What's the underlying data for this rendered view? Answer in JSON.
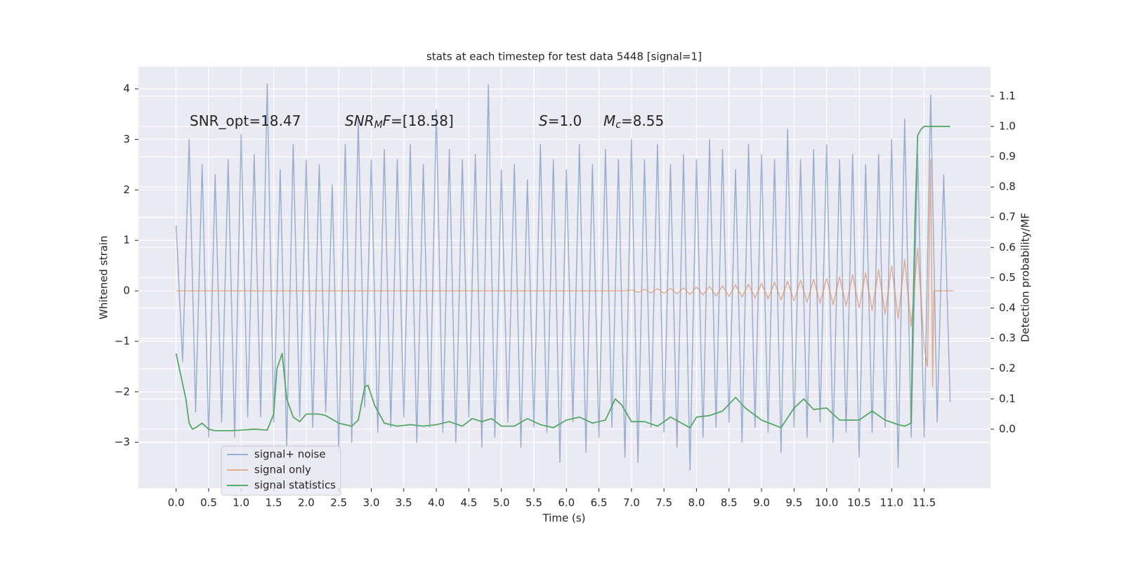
{
  "chart_data": {
    "type": "line",
    "title": "stats at each timestep for test data 5448 [signal=1]",
    "xlabel": "Time (s)",
    "ylabel": "Whitened strain",
    "y2label": "Detection probability/MF",
    "annotations": [
      {
        "parts": [
          {
            "text": "SNR_opt=18.47"
          }
        ]
      },
      {
        "parts": [
          {
            "text": "SNR",
            "style": "italic"
          },
          {
            "text": "M",
            "style": "italic sub"
          },
          {
            "text": "F",
            "style": "italic"
          },
          {
            "text": "=[18.58]"
          }
        ]
      },
      {
        "parts": [
          {
            "text": "S",
            "style": "italic"
          },
          {
            "text": "=1.0"
          }
        ]
      },
      {
        "parts": [
          {
            "text": "M",
            "style": "italic"
          },
          {
            "text": "c",
            "style": "italic sub"
          },
          {
            "text": "=8.55"
          }
        ]
      }
    ],
    "xlim": [
      -0.58,
      12.52
    ],
    "xticks": [
      {
        "value": 0,
        "label": "0.0"
      },
      0.5,
      {
        "value": 1,
        "label": "1.0"
      },
      1.5,
      {
        "value": 2,
        "label": "2.0"
      },
      2.5,
      {
        "value": 3,
        "label": "3.0"
      },
      3.5,
      {
        "value": 4,
        "label": "4.0"
      },
      4.5,
      {
        "value": 5,
        "label": "5.0"
      },
      5.5,
      {
        "value": 6,
        "label": "6.0"
      },
      6.5,
      {
        "value": 7,
        "label": "7.0"
      },
      7.5,
      {
        "value": 8,
        "label": "8.0"
      },
      8.5,
      {
        "value": 9,
        "label": "9.0"
      },
      9.5,
      {
        "value": 10,
        "label": "10.0"
      },
      10.5,
      {
        "value": 11,
        "label": "11.0"
      },
      11.5
    ],
    "ylim": [
      -3.91,
      4.44
    ],
    "yticks": [
      {
        "value": -3,
        "label": "−3"
      },
      {
        "value": -2,
        "label": "−2"
      },
      {
        "value": -1,
        "label": "−1"
      },
      0,
      1,
      2,
      3,
      4
    ],
    "y2lim": [
      -0.195,
      1.197
    ],
    "y2ticks": [
      {
        "value": 0,
        "label": "0.0"
      },
      0.1,
      0.2,
      0.3,
      0.4,
      0.5,
      0.6,
      0.7,
      0.8,
      0.9,
      {
        "value": 1,
        "label": "1.0"
      },
      1.1
    ],
    "grid": true,
    "legend": "lower left",
    "series": [
      {
        "name": "signal+ noise",
        "color": "#4c72b0",
        "opacity": 0.5,
        "x": [
          0.0,
          0.1,
          0.2,
          0.3,
          0.4,
          0.5,
          0.6,
          0.7,
          0.8,
          0.9,
          1.0,
          1.1,
          1.2,
          1.3,
          1.4,
          1.5,
          1.6,
          1.7,
          1.8,
          1.9,
          2.0,
          2.1,
          2.2,
          2.3,
          2.4,
          2.5,
          2.6,
          2.7,
          2.8,
          2.9,
          3.0,
          3.1,
          3.2,
          3.3,
          3.4,
          3.5,
          3.6,
          3.7,
          3.8,
          3.9,
          4.0,
          4.1,
          4.2,
          4.3,
          4.4,
          4.5,
          4.6,
          4.7,
          4.8,
          4.9,
          5.0,
          5.1,
          5.2,
          5.3,
          5.4,
          5.5,
          5.6,
          5.7,
          5.8,
          5.9,
          6.0,
          6.1,
          6.2,
          6.3,
          6.4,
          6.5,
          6.6,
          6.7,
          6.8,
          6.9,
          7.0,
          7.1,
          7.2,
          7.3,
          7.4,
          7.5,
          7.6,
          7.7,
          7.8,
          7.9,
          8.0,
          8.1,
          8.2,
          8.3,
          8.4,
          8.5,
          8.6,
          8.7,
          8.8,
          8.9,
          9.0,
          9.1,
          9.2,
          9.3,
          9.4,
          9.5,
          9.6,
          9.7,
          9.8,
          9.9,
          10.0,
          10.1,
          10.2,
          10.3,
          10.4,
          10.5,
          10.6,
          10.7,
          10.8,
          10.9,
          11.0,
          11.1,
          11.2,
          11.3,
          11.4,
          11.5,
          11.6,
          11.7,
          11.8,
          11.9
        ],
        "values": [
          1.3,
          -1.4,
          3.0,
          -2.4,
          2.5,
          -2.9,
          2.3,
          -2.6,
          2.6,
          -2.9,
          3.1,
          -2.5,
          2.7,
          -2.5,
          4.1,
          -2.6,
          2.4,
          -3.1,
          2.9,
          -2.5,
          2.6,
          -2.7,
          2.5,
          -2.4,
          2.1,
          -3.2,
          2.9,
          -3.0,
          3.4,
          -2.3,
          2.6,
          -2.8,
          2.8,
          -2.7,
          2.6,
          -2.5,
          2.9,
          -3.0,
          2.5,
          -2.7,
          3.58,
          -2.8,
          2.8,
          -3.0,
          2.6,
          -2.5,
          2.7,
          -3.1,
          4.08,
          -2.9,
          2.4,
          -2.6,
          2.5,
          -3.1,
          2.2,
          -2.7,
          2.9,
          -2.8,
          2.6,
          -3.4,
          2.4,
          -2.6,
          2.9,
          -3.2,
          2.5,
          -2.9,
          2.8,
          -2.7,
          2.6,
          -3.3,
          3.0,
          -3.4,
          2.6,
          -2.7,
          2.9,
          -2.8,
          2.5,
          -3.1,
          2.7,
          -3.55,
          2.6,
          -2.9,
          3.0,
          -2.7,
          2.8,
          -2.6,
          2.4,
          -3.0,
          2.9,
          -2.7,
          2.7,
          -2.8,
          2.6,
          -3.2,
          3.2,
          -2.7,
          2.6,
          -2.9,
          2.8,
          -2.6,
          2.9,
          -3.0,
          2.6,
          -2.8,
          2.7,
          -3.3,
          2.5,
          -2.8,
          2.7,
          -2.7,
          3.0,
          -3.5,
          3.4,
          -2.9,
          2.7,
          -2.9,
          3.88,
          -2.6,
          2.3,
          -2.2
        ]
      },
      {
        "name": "signal only",
        "color": "#dd8452",
        "opacity": 0.6,
        "x": [
          0,
          6.9,
          7.0,
          7.1,
          7.2,
          7.3,
          7.4,
          7.5,
          7.6,
          7.7,
          7.8,
          7.9,
          8.0,
          8.1,
          8.2,
          8.3,
          8.4,
          8.5,
          8.6,
          8.7,
          8.8,
          8.9,
          9.0,
          9.1,
          9.2,
          9.3,
          9.4,
          9.5,
          9.6,
          9.7,
          9.8,
          9.9,
          10.0,
          10.1,
          10.2,
          10.3,
          10.4,
          10.5,
          10.6,
          10.7,
          10.8,
          10.9,
          11.0,
          11.1,
          11.2,
          11.3,
          11.4,
          11.5,
          11.55,
          11.6,
          11.63,
          11.65,
          11.95
        ],
        "values": [
          0,
          0,
          0.02,
          -0.03,
          0.03,
          -0.04,
          0.04,
          -0.05,
          0.05,
          -0.06,
          0.06,
          -0.07,
          0.08,
          -0.08,
          0.09,
          -0.1,
          0.1,
          -0.11,
          0.12,
          -0.12,
          0.13,
          -0.14,
          0.15,
          -0.16,
          0.17,
          -0.18,
          0.19,
          -0.2,
          0.21,
          -0.22,
          0.23,
          -0.24,
          0.25,
          -0.27,
          0.28,
          -0.3,
          0.32,
          -0.34,
          0.36,
          -0.39,
          0.42,
          -0.46,
          0.5,
          -0.55,
          0.62,
          -0.7,
          0.85,
          -1.1,
          -1.5,
          2.6,
          -1.9,
          0,
          0
        ]
      },
      {
        "name": "signal statistics",
        "color": "#55a868",
        "opacity": 1,
        "axis": "y2",
        "x": [
          0,
          0.05,
          0.1,
          0.15,
          0.2,
          0.25,
          0.3,
          0.4,
          0.5,
          0.6,
          0.8,
          1.0,
          1.2,
          1.4,
          1.5,
          1.55,
          1.63,
          1.7,
          1.8,
          1.9,
          2.0,
          2.2,
          2.3,
          2.5,
          2.7,
          2.8,
          2.9,
          2.95,
          3.05,
          3.2,
          3.4,
          3.6,
          3.8,
          4.0,
          4.2,
          4.4,
          4.55,
          4.7,
          4.85,
          5.0,
          5.2,
          5.4,
          5.6,
          5.8,
          6.0,
          6.2,
          6.4,
          6.6,
          6.75,
          6.85,
          7.0,
          7.2,
          7.4,
          7.6,
          7.9,
          8.0,
          8.2,
          8.4,
          8.6,
          8.75,
          9.0,
          9.3,
          9.5,
          9.65,
          9.8,
          10.0,
          10.2,
          10.5,
          10.7,
          10.9,
          11.1,
          11.2,
          11.3,
          11.32,
          11.36,
          11.4,
          11.45,
          11.5,
          11.9
        ],
        "values": [
          0.25,
          0.2,
          0.15,
          0.1,
          0.02,
          0.0,
          0.005,
          0.02,
          0.0,
          -0.005,
          -0.005,
          -0.003,
          0.0,
          -0.003,
          0.05,
          0.2,
          0.25,
          0.1,
          0.04,
          0.025,
          0.05,
          0.05,
          0.045,
          0.02,
          0.01,
          0.03,
          0.14,
          0.145,
          0.08,
          0.02,
          0.01,
          0.015,
          0.01,
          0.015,
          0.025,
          0.01,
          0.035,
          0.025,
          0.035,
          0.01,
          0.01,
          0.035,
          0.015,
          0.005,
          0.03,
          0.04,
          0.02,
          0.03,
          0.1,
          0.08,
          0.025,
          0.025,
          0.01,
          0.04,
          0.005,
          0.04,
          0.045,
          0.06,
          0.105,
          0.07,
          0.03,
          0.005,
          0.07,
          0.1,
          0.065,
          0.07,
          0.03,
          0.03,
          0.06,
          0.03,
          0.015,
          0.01,
          0.02,
          0.3,
          0.7,
          0.97,
          0.99,
          1.0,
          1.0
        ]
      }
    ]
  }
}
